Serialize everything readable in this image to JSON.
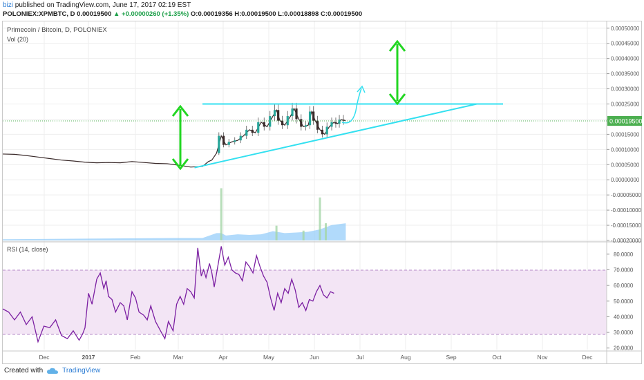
{
  "header": {
    "user": "bizi",
    "published": "published on TradingView.com, June 17, 2017 02:19 EST",
    "symbol": "POLONIEX:XPMBTC, D",
    "last": "0.00019500",
    "change": "+0.00000260 (+1.35%)",
    "open": "O:0.00019356",
    "high": "H:0.00019500",
    "low": "L:0.00018898",
    "close": "C:0.00019500"
  },
  "footer": {
    "created_with": "Created with",
    "brand": "TradingView"
  },
  "colors": {
    "bull": "#26a69a",
    "bear": "#3a2a2a",
    "volume": "#90caf9",
    "rsi": "#7b1fa2",
    "rsi_band": "#f3e5f5",
    "cyan": "#33e0f0",
    "green_arrow": "#22d622"
  },
  "chart_data": [
    {
      "type": "candlestick",
      "title": "Primecoin / Bitcoin, D, POLONIEX",
      "indicator_label": "Vol (20)",
      "x_ticks": [
        "Dec",
        "2017",
        "Feb",
        "Mar",
        "Apr",
        "May",
        "Jun",
        "Jul",
        "Aug",
        "Sep",
        "Oct",
        "Nov",
        "Dec"
      ],
      "y_ticks": [
        "0.00050000",
        "0.00045000",
        "0.00040000",
        "0.00035000",
        "0.00030000",
        "0.00025000",
        "0.00020000",
        "0.00015000",
        "0.00010000",
        "0.00005000",
        "0.00000000",
        "-0.00005000",
        "-0.00010000",
        "-0.00015000",
        "-0.00020000"
      ],
      "ylim": [
        -0.0002,
        0.00052
      ],
      "last_price_label": "0.00019500",
      "price_path": [
        [
          0,
          8.5e-05
        ],
        [
          10,
          8.4e-05
        ],
        [
          20,
          8e-05
        ],
        [
          30,
          7.5e-05
        ],
        [
          40,
          7e-05
        ],
        [
          50,
          6.5e-05
        ],
        [
          60,
          6.2e-05
        ],
        [
          70,
          5.8e-05
        ],
        [
          80,
          5.6e-05
        ],
        [
          90,
          5.7e-05
        ],
        [
          100,
          5.6e-05
        ],
        [
          110,
          6e-05
        ],
        [
          120,
          5.7e-05
        ],
        [
          130,
          5.4e-05
        ],
        [
          140,
          5.3e-05
        ],
        [
          150,
          4.8e-05
        ],
        [
          160,
          4.2e-05
        ],
        [
          170,
          4.4e-05
        ],
        [
          175,
          6e-05
        ],
        [
          178,
          6.5e-05
        ],
        [
          182,
          8.8e-05
        ],
        [
          186,
          0.000145
        ],
        [
          190,
          0.000115
        ],
        [
          195,
          0.000125
        ],
        [
          200,
          0.00013
        ],
        [
          205,
          0.000145
        ],
        [
          210,
          0.000165
        ],
        [
          215,
          0.000155
        ],
        [
          220,
          0.00019
        ],
        [
          225,
          0.000175
        ],
        [
          230,
          0.00021
        ],
        [
          233,
          0.00023
        ],
        [
          236,
          0.000195
        ],
        [
          240,
          0.00018
        ],
        [
          245,
          0.00021
        ],
        [
          248,
          0.000235
        ],
        [
          252,
          0.0002
        ],
        [
          256,
          0.000175
        ],
        [
          260,
          0.00018
        ],
        [
          263,
          0.000225
        ],
        [
          266,
          0.000195
        ],
        [
          270,
          0.000165
        ],
        [
          274,
          0.00015
        ],
        [
          278,
          0.000175
        ],
        [
          282,
          0.00019
        ],
        [
          285,
          0.000185
        ],
        [
          288,
          0.000198
        ],
        [
          292,
          0.000195
        ]
      ],
      "volume_profile": [
        [
          0,
          2e-06
        ],
        [
          150,
          4e-06
        ],
        [
          170,
          4e-06
        ],
        [
          182,
          1.2e-05
        ],
        [
          186,
          1.2e-05
        ],
        [
          190,
          8e-06
        ],
        [
          200,
          1e-05
        ],
        [
          210,
          9e-06
        ],
        [
          220,
          1e-05
        ],
        [
          230,
          1.5e-05
        ],
        [
          240,
          1.2e-05
        ],
        [
          250,
          1.3e-05
        ],
        [
          260,
          1.4e-05
        ],
        [
          270,
          1.8e-05
        ],
        [
          280,
          2.5e-05
        ],
        [
          292,
          2.8e-05
        ]
      ],
      "volume_spikes": [
        [
          186,
          8.5e-05
        ],
        [
          233,
          2.4e-05
        ],
        [
          256,
          1.6e-05
        ],
        [
          270,
          7e-05
        ],
        [
          275,
          2.8e-05
        ]
      ],
      "annotations": {
        "resistance_line": [
          [
            170,
            0.00025
          ],
          [
            300,
            0.00025
          ]
        ],
        "support_line": [
          [
            155,
            4e-05
          ],
          [
            300,
            0.00025
          ]
        ]
      }
    },
    {
      "type": "line",
      "title": "RSI (14, close)",
      "y_ticks": [
        "80.0000",
        "70.0000",
        "60.0000",
        "50.0000",
        "40.0000",
        "30.0000",
        "20.0000"
      ],
      "ylim": [
        19,
        87
      ],
      "band": [
        30,
        70
      ],
      "values": [
        [
          0,
          45
        ],
        [
          5,
          43
        ],
        [
          10,
          38
        ],
        [
          15,
          43
        ],
        [
          20,
          35
        ],
        [
          25,
          40
        ],
        [
          30,
          24
        ],
        [
          35,
          34
        ],
        [
          40,
          33
        ],
        [
          45,
          38
        ],
        [
          50,
          28
        ],
        [
          55,
          26
        ],
        [
          60,
          31
        ],
        [
          65,
          25
        ],
        [
          68,
          29
        ],
        [
          70,
          33
        ],
        [
          73,
          55
        ],
        [
          76,
          48
        ],
        [
          80,
          64
        ],
        [
          83,
          68
        ],
        [
          86,
          58
        ],
        [
          88,
          63
        ],
        [
          90,
          53
        ],
        [
          93,
          51
        ],
        [
          96,
          43
        ],
        [
          100,
          49
        ],
        [
          103,
          47
        ],
        [
          106,
          38
        ],
        [
          110,
          56
        ],
        [
          113,
          52
        ],
        [
          116,
          43
        ],
        [
          120,
          41
        ],
        [
          123,
          38
        ],
        [
          126,
          47
        ],
        [
          130,
          37
        ],
        [
          135,
          30
        ],
        [
          138,
          26
        ],
        [
          141,
          37
        ],
        [
          145,
          31
        ],
        [
          148,
          48
        ],
        [
          151,
          53
        ],
        [
          154,
          48
        ],
        [
          157,
          58
        ],
        [
          160,
          56
        ],
        [
          163,
          52
        ],
        [
          166,
          84
        ],
        [
          169,
          66
        ],
        [
          171,
          70
        ],
        [
          173,
          65
        ],
        [
          176,
          74
        ],
        [
          178,
          68
        ],
        [
          180,
          59
        ],
        [
          183,
          72
        ],
        [
          186,
          85
        ],
        [
          189,
          73
        ],
        [
          192,
          78
        ],
        [
          195,
          70
        ],
        [
          198,
          68
        ],
        [
          201,
          67
        ],
        [
          204,
          63
        ],
        [
          207,
          75
        ],
        [
          210,
          72
        ],
        [
          213,
          68
        ],
        [
          216,
          79
        ],
        [
          219,
          72
        ],
        [
          222,
          66
        ],
        [
          225,
          62
        ],
        [
          228,
          52
        ],
        [
          231,
          44
        ],
        [
          234,
          55
        ],
        [
          237,
          49
        ],
        [
          240,
          58
        ],
        [
          243,
          55
        ],
        [
          246,
          64
        ],
        [
          249,
          57
        ],
        [
          252,
          46
        ],
        [
          255,
          49
        ],
        [
          258,
          44
        ],
        [
          261,
          51
        ],
        [
          264,
          50
        ],
        [
          267,
          56
        ],
        [
          270,
          60
        ],
        [
          273,
          54
        ],
        [
          276,
          52
        ],
        [
          279,
          56
        ],
        [
          282,
          55
        ]
      ]
    }
  ]
}
